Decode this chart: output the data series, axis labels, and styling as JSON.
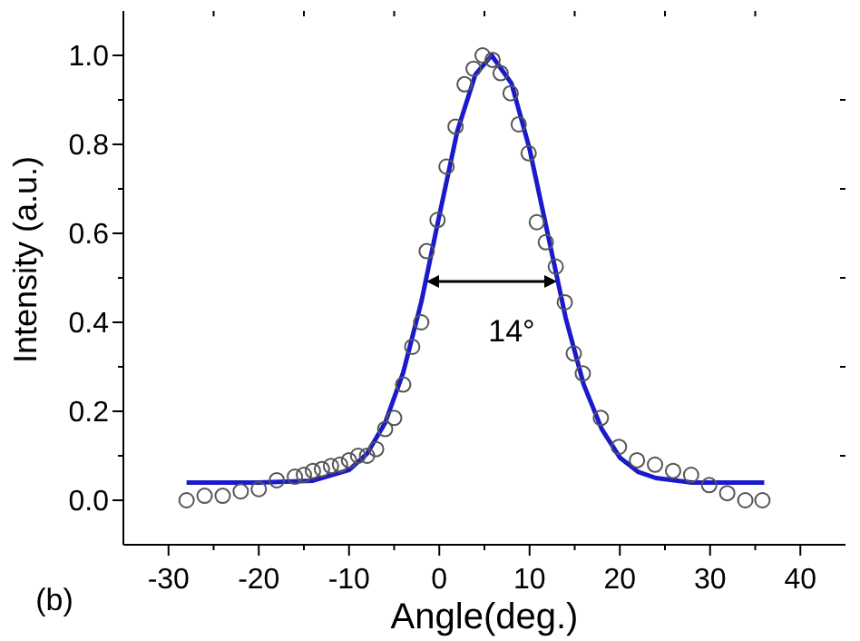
{
  "chart_data": {
    "type": "scatter",
    "xlabel": "Angle(deg.)",
    "ylabel": "Intensity (a.u.)",
    "xlim": [
      -35,
      45
    ],
    "xticks": [
      -30,
      -20,
      -10,
      0,
      10,
      20,
      30,
      40
    ],
    "ylim": [
      -0.1,
      1.1
    ],
    "yticks": [
      {
        "value": 0,
        "label": "0.0"
      },
      {
        "value": 0.2,
        "label": "0.2"
      },
      {
        "value": 0.4,
        "label": "0.4"
      },
      {
        "value": 0.6,
        "label": "0.6"
      },
      {
        "value": 0.8,
        "label": "0.8"
      },
      {
        "value": 1,
        "label": "1.0"
      }
    ],
    "grid": false,
    "legend": false,
    "annotations": [
      "14°",
      "(b)"
    ],
    "series": [
      {
        "type": "scatter",
        "color": "#555555",
        "marker": "circle",
        "x": [
          -28,
          -26,
          -24,
          -22,
          -20,
          -18,
          -16,
          -15,
          -14,
          -13,
          -12,
          -11,
          -10,
          -9,
          -8,
          -7,
          -6,
          -5,
          -4,
          -3,
          -2,
          -1.4,
          -0.2,
          0.8,
          1.8,
          2.8,
          3.8,
          4.8,
          5.9,
          6.8,
          7.9,
          8.8,
          9.9,
          10.8,
          11.8,
          12.9,
          13.9,
          14.9,
          15.9,
          17.9,
          19.9,
          21.9,
          23.9,
          25.9,
          27.9,
          29.9,
          31.9,
          33.9,
          35.8
        ],
        "values": [
          0.0,
          0.01,
          0.01,
          0.02,
          0.025,
          0.045,
          0.053,
          0.057,
          0.066,
          0.07,
          0.077,
          0.08,
          0.09,
          0.1,
          0.1,
          0.115,
          0.16,
          0.185,
          0.26,
          0.345,
          0.4,
          0.56,
          0.63,
          0.75,
          0.84,
          0.935,
          0.97,
          1.0,
          0.99,
          0.96,
          0.915,
          0.845,
          0.78,
          0.625,
          0.58,
          0.525,
          0.445,
          0.33,
          0.285,
          0.185,
          0.12,
          0.09,
          0.08,
          0.066,
          0.057,
          0.034,
          0.016,
          0.0,
          0.0
        ]
      },
      {
        "type": "line",
        "color": "#1a1acc",
        "marker": "none",
        "line_style": "solid",
        "x": [
          -28,
          -20,
          -14,
          -10,
          -8,
          -6,
          -4,
          -2,
          0,
          2,
          4,
          5.8,
          8,
          10,
          12,
          14,
          16,
          18,
          20,
          22,
          24,
          28,
          36
        ],
        "values": [
          0.04,
          0.04,
          0.044,
          0.068,
          0.105,
          0.174,
          0.287,
          0.445,
          0.64,
          0.83,
          0.957,
          1.0,
          0.937,
          0.79,
          0.6,
          0.41,
          0.26,
          0.16,
          0.096,
          0.064,
          0.05,
          0.04,
          0.04
        ]
      }
    ]
  }
}
